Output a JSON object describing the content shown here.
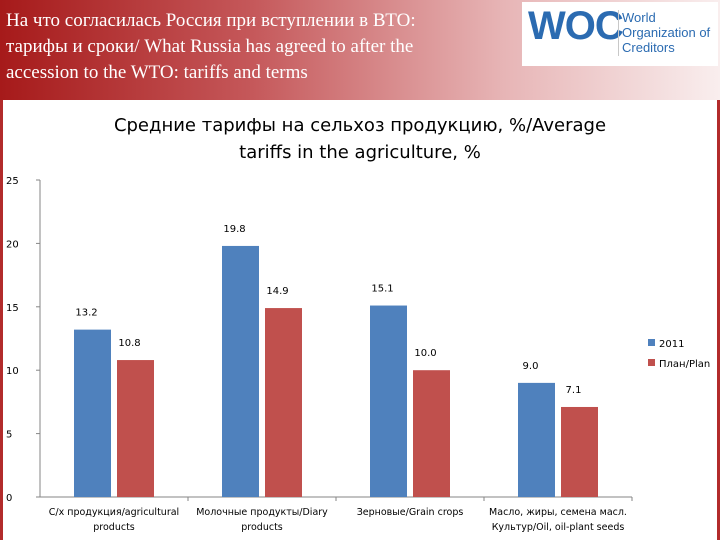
{
  "header": {
    "title_ru": "На что согласилась Россия при вступлении в ВТО:",
    "title_line2": "тарифы и сроки/ What Russia has agreed to after the",
    "title_line3": "accession to the WTO: tariffs and terms"
  },
  "logo": {
    "mark": "WOC",
    "line1": "World",
    "line2": "Organization of",
    "line3": "Creditors"
  },
  "colors": {
    "series_2011": "#4f81bd",
    "series_plan": "#c0504d",
    "header_red": "#a61a1a"
  },
  "chart_data": {
    "type": "bar",
    "title": "Средние тарифы на сельхоз продукцию, %/Average tariffs in the agriculture, %",
    "title_lines": [
      "Средние тарифы на сельхоз продукцию, %/Average",
      "tariffs in the agriculture, %"
    ],
    "categories": [
      [
        "С/х продукция/agricultural",
        "products"
      ],
      [
        "Молочные продукты/Diary",
        "products"
      ],
      [
        "Зерновые/Grain crops",
        ""
      ],
      [
        "Масло, жиры, семена масл.",
        "Культур/Oil, oil-plant seeds"
      ]
    ],
    "series": [
      {
        "name": "2011",
        "values": [
          13.2,
          19.8,
          15.1,
          9.0
        ],
        "labels": [
          "13.2",
          "19.8",
          "15.1",
          "9.0"
        ]
      },
      {
        "name": "План/Plan",
        "values": [
          10.8,
          14.9,
          10.0,
          7.1
        ],
        "labels": [
          "10.8",
          "14.9",
          "10.0",
          "7.1"
        ]
      }
    ],
    "ylim": [
      0,
      25
    ],
    "yticks": [
      "0",
      "5",
      "10",
      "15",
      "20",
      "25"
    ],
    "xlabel": "",
    "ylabel": "",
    "grid": false,
    "legend_position": "right"
  }
}
